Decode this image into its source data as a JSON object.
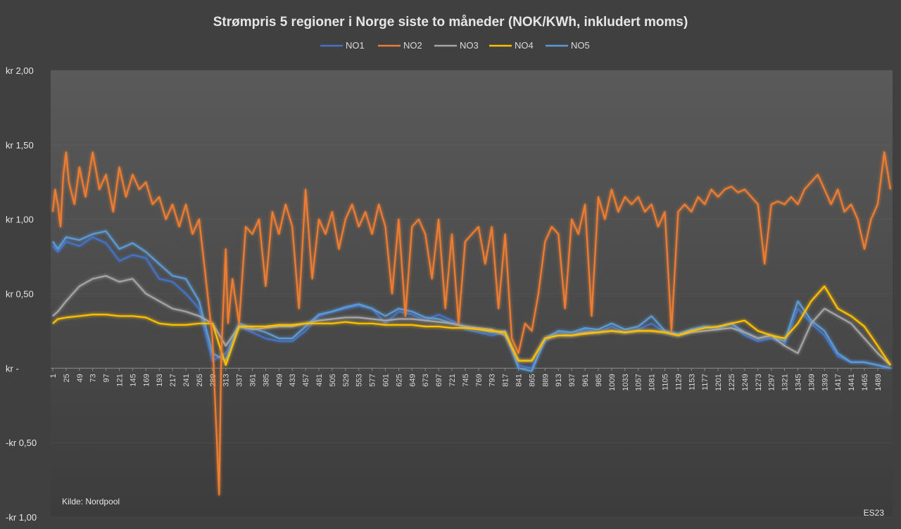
{
  "chart_data": {
    "type": "line",
    "title": "Strømpris 5 regioner i Norge siste to måneder (NOK/KWh, inkludert moms)",
    "xlabel": "",
    "ylabel": "",
    "y_tick_values": [
      2.0,
      1.5,
      1.0,
      0.5,
      0.0,
      -0.5,
      -1.0
    ],
    "y_tick_labels": [
      "kr  2,00",
      "kr  1,50",
      "kr  1,00",
      "kr  0,50",
      "kr  -",
      "-kr  0,50",
      "-kr  1,00"
    ],
    "ylim": [
      -1.0,
      2.0
    ],
    "xlim": [
      1,
      1512
    ],
    "x_tick_labels": [
      "1",
      "25",
      "49",
      "73",
      "97",
      "121",
      "145",
      "169",
      "193",
      "217",
      "241",
      "265",
      "289",
      "313",
      "337",
      "361",
      "385",
      "409",
      "433",
      "457",
      "481",
      "505",
      "529",
      "553",
      "577",
      "601",
      "625",
      "649",
      "673",
      "697",
      "721",
      "745",
      "769",
      "793",
      "817",
      "841",
      "865",
      "889",
      "913",
      "937",
      "961",
      "985",
      "1009",
      "1033",
      "1057",
      "1081",
      "1105",
      "1129",
      "1153",
      "1177",
      "1201",
      "1225",
      "1249",
      "1273",
      "1297",
      "1321",
      "1345",
      "1369",
      "1393",
      "1417",
      "1441",
      "1465",
      "1489"
    ],
    "legend_position": "top-center",
    "series": [
      {
        "name": "NO1",
        "color": "#4472c4",
        "x": [
          1,
          10,
          25,
          49,
          73,
          97,
          121,
          145,
          169,
          193,
          217,
          241,
          265,
          289,
          313,
          337,
          361,
          385,
          409,
          433,
          457,
          481,
          505,
          529,
          553,
          577,
          601,
          625,
          649,
          673,
          697,
          721,
          745,
          769,
          793,
          817,
          841,
          865,
          889,
          913,
          937,
          961,
          985,
          1009,
          1033,
          1057,
          1081,
          1105,
          1129,
          1153,
          1177,
          1201,
          1225,
          1249,
          1273,
          1297,
          1321,
          1345,
          1369,
          1393,
          1417,
          1441,
          1465,
          1489,
          1512
        ],
        "values": [
          0.82,
          0.78,
          0.85,
          0.82,
          0.88,
          0.84,
          0.72,
          0.76,
          0.74,
          0.6,
          0.58,
          0.5,
          0.4,
          0.05,
          0.1,
          0.28,
          0.24,
          0.2,
          0.18,
          0.18,
          0.25,
          0.35,
          0.38,
          0.4,
          0.42,
          0.4,
          0.3,
          0.38,
          0.36,
          0.32,
          0.36,
          0.32,
          0.26,
          0.24,
          0.22,
          0.24,
          0.02,
          0.0,
          0.18,
          0.24,
          0.22,
          0.26,
          0.24,
          0.28,
          0.24,
          0.26,
          0.3,
          0.24,
          0.22,
          0.26,
          0.28,
          0.26,
          0.3,
          0.22,
          0.18,
          0.2,
          0.16,
          0.4,
          0.3,
          0.22,
          0.08,
          0.04,
          0.04,
          0.02,
          0.0
        ]
      },
      {
        "name": "NO2",
        "color": "#ed7d31",
        "x": [
          1,
          5,
          10,
          15,
          20,
          25,
          30,
          40,
          49,
          60,
          73,
          85,
          97,
          110,
          121,
          133,
          145,
          157,
          169,
          181,
          193,
          205,
          217,
          229,
          241,
          253,
          265,
          277,
          289,
          301,
          305,
          313,
          317,
          325,
          337,
          349,
          361,
          373,
          385,
          397,
          409,
          421,
          433,
          445,
          457,
          469,
          481,
          493,
          505,
          517,
          529,
          541,
          553,
          565,
          577,
          589,
          601,
          613,
          625,
          637,
          649,
          661,
          673,
          685,
          697,
          709,
          721,
          733,
          745,
          757,
          769,
          781,
          793,
          805,
          817,
          829,
          841,
          853,
          865,
          877,
          889,
          901,
          913,
          925,
          937,
          949,
          961,
          973,
          985,
          997,
          1009,
          1021,
          1033,
          1045,
          1057,
          1069,
          1081,
          1093,
          1105,
          1117,
          1129,
          1141,
          1153,
          1165,
          1177,
          1189,
          1201,
          1213,
          1225,
          1237,
          1249,
          1261,
          1273,
          1285,
          1297,
          1309,
          1321,
          1333,
          1345,
          1357,
          1369,
          1381,
          1393,
          1405,
          1417,
          1429,
          1441,
          1453,
          1465,
          1477,
          1489,
          1501,
          1512
        ],
        "values": [
          1.05,
          1.2,
          1.1,
          0.95,
          1.3,
          1.45,
          1.25,
          1.1,
          1.35,
          1.15,
          1.45,
          1.2,
          1.3,
          1.05,
          1.35,
          1.15,
          1.3,
          1.2,
          1.25,
          1.1,
          1.15,
          1.0,
          1.1,
          0.95,
          1.1,
          0.9,
          1.0,
          0.6,
          0.2,
          -0.85,
          0.1,
          0.8,
          0.3,
          0.6,
          0.3,
          0.95,
          0.9,
          1.0,
          0.55,
          1.05,
          0.9,
          1.1,
          0.95,
          0.4,
          1.2,
          0.6,
          1.0,
          0.9,
          1.05,
          0.8,
          1.0,
          1.1,
          0.95,
          1.05,
          0.9,
          1.1,
          0.95,
          0.5,
          1.0,
          0.35,
          0.95,
          1.0,
          0.9,
          0.6,
          1.0,
          0.4,
          0.9,
          0.3,
          0.85,
          0.9,
          0.95,
          0.7,
          0.95,
          0.4,
          0.9,
          0.2,
          0.1,
          0.3,
          0.25,
          0.5,
          0.85,
          0.95,
          0.9,
          0.4,
          1.0,
          0.9,
          1.1,
          0.35,
          1.15,
          1.0,
          1.2,
          1.05,
          1.15,
          1.1,
          1.15,
          1.05,
          1.1,
          0.95,
          1.05,
          0.25,
          1.05,
          1.1,
          1.05,
          1.15,
          1.1,
          1.2,
          1.15,
          1.2,
          1.22,
          1.18,
          1.2,
          1.15,
          1.1,
          0.7,
          1.1,
          1.12,
          1.1,
          1.15,
          1.1,
          1.2,
          1.25,
          1.3,
          1.2,
          1.1,
          1.2,
          1.05,
          1.1,
          1.0,
          0.8,
          1.0,
          1.1,
          1.45,
          1.2
        ]
      },
      {
        "name": "NO3",
        "color": "#a5a5a5",
        "x": [
          1,
          10,
          25,
          49,
          73,
          97,
          121,
          145,
          169,
          193,
          217,
          241,
          265,
          289,
          313,
          337,
          361,
          385,
          409,
          433,
          457,
          481,
          505,
          529,
          553,
          577,
          601,
          625,
          649,
          673,
          697,
          721,
          745,
          769,
          793,
          817,
          841,
          865,
          889,
          913,
          937,
          961,
          985,
          1009,
          1033,
          1057,
          1081,
          1105,
          1129,
          1153,
          1177,
          1201,
          1225,
          1249,
          1273,
          1297,
          1321,
          1345,
          1369,
          1393,
          1417,
          1441,
          1465,
          1489,
          1512
        ],
        "values": [
          0.35,
          0.38,
          0.45,
          0.55,
          0.6,
          0.62,
          0.58,
          0.6,
          0.5,
          0.45,
          0.4,
          0.38,
          0.35,
          0.3,
          0.15,
          0.28,
          0.26,
          0.27,
          0.28,
          0.28,
          0.3,
          0.32,
          0.33,
          0.34,
          0.34,
          0.33,
          0.32,
          0.33,
          0.33,
          0.32,
          0.31,
          0.3,
          0.28,
          0.27,
          0.26,
          0.22,
          0.05,
          0.05,
          0.2,
          0.22,
          0.22,
          0.24,
          0.24,
          0.25,
          0.24,
          0.25,
          0.25,
          0.24,
          0.22,
          0.24,
          0.25,
          0.26,
          0.27,
          0.24,
          0.2,
          0.22,
          0.15,
          0.1,
          0.3,
          0.4,
          0.35,
          0.3,
          0.2,
          0.1,
          0.02
        ]
      },
      {
        "name": "NO4",
        "color": "#ffc000",
        "x": [
          1,
          10,
          25,
          49,
          73,
          97,
          121,
          145,
          169,
          193,
          217,
          241,
          265,
          289,
          313,
          337,
          361,
          385,
          409,
          433,
          457,
          481,
          505,
          529,
          553,
          577,
          601,
          625,
          649,
          673,
          697,
          721,
          745,
          769,
          793,
          817,
          841,
          865,
          889,
          913,
          937,
          961,
          985,
          1009,
          1033,
          1057,
          1081,
          1105,
          1129,
          1153,
          1177,
          1201,
          1225,
          1249,
          1273,
          1297,
          1321,
          1345,
          1369,
          1393,
          1417,
          1441,
          1465,
          1489,
          1512
        ],
        "values": [
          0.3,
          0.33,
          0.34,
          0.35,
          0.36,
          0.36,
          0.35,
          0.35,
          0.34,
          0.3,
          0.29,
          0.29,
          0.3,
          0.3,
          0.02,
          0.28,
          0.28,
          0.28,
          0.29,
          0.29,
          0.3,
          0.3,
          0.3,
          0.31,
          0.3,
          0.3,
          0.29,
          0.29,
          0.29,
          0.28,
          0.28,
          0.27,
          0.27,
          0.26,
          0.25,
          0.24,
          0.05,
          0.05,
          0.2,
          0.22,
          0.22,
          0.23,
          0.24,
          0.25,
          0.24,
          0.25,
          0.25,
          0.24,
          0.22,
          0.25,
          0.27,
          0.28,
          0.3,
          0.32,
          0.25,
          0.22,
          0.2,
          0.3,
          0.45,
          0.55,
          0.4,
          0.35,
          0.28,
          0.15,
          0.02
        ]
      },
      {
        "name": "NO5",
        "color": "#5b9bd5",
        "x": [
          1,
          10,
          25,
          49,
          73,
          97,
          121,
          145,
          169,
          193,
          217,
          241,
          265,
          289,
          313,
          337,
          361,
          385,
          409,
          433,
          457,
          481,
          505,
          529,
          553,
          577,
          601,
          625,
          649,
          673,
          697,
          721,
          745,
          769,
          793,
          817,
          841,
          865,
          889,
          913,
          937,
          961,
          985,
          1009,
          1033,
          1057,
          1081,
          1105,
          1129,
          1153,
          1177,
          1201,
          1225,
          1249,
          1273,
          1297,
          1321,
          1345,
          1369,
          1393,
          1417,
          1441,
          1465,
          1489,
          1512
        ],
        "values": [
          0.85,
          0.8,
          0.88,
          0.86,
          0.9,
          0.92,
          0.8,
          0.84,
          0.78,
          0.7,
          0.62,
          0.6,
          0.45,
          0.1,
          0.05,
          0.3,
          0.27,
          0.24,
          0.2,
          0.2,
          0.28,
          0.36,
          0.38,
          0.41,
          0.43,
          0.4,
          0.35,
          0.4,
          0.38,
          0.34,
          0.33,
          0.3,
          0.28,
          0.26,
          0.24,
          0.25,
          0.0,
          -0.02,
          0.2,
          0.25,
          0.24,
          0.27,
          0.26,
          0.3,
          0.26,
          0.28,
          0.35,
          0.25,
          0.23,
          0.26,
          0.28,
          0.27,
          0.3,
          0.24,
          0.2,
          0.22,
          0.18,
          0.45,
          0.32,
          0.25,
          0.1,
          0.04,
          0.04,
          0.02,
          0.0
        ]
      }
    ],
    "annotations": {
      "source": "Kilde: Nordpool",
      "credit": "ES23"
    }
  }
}
